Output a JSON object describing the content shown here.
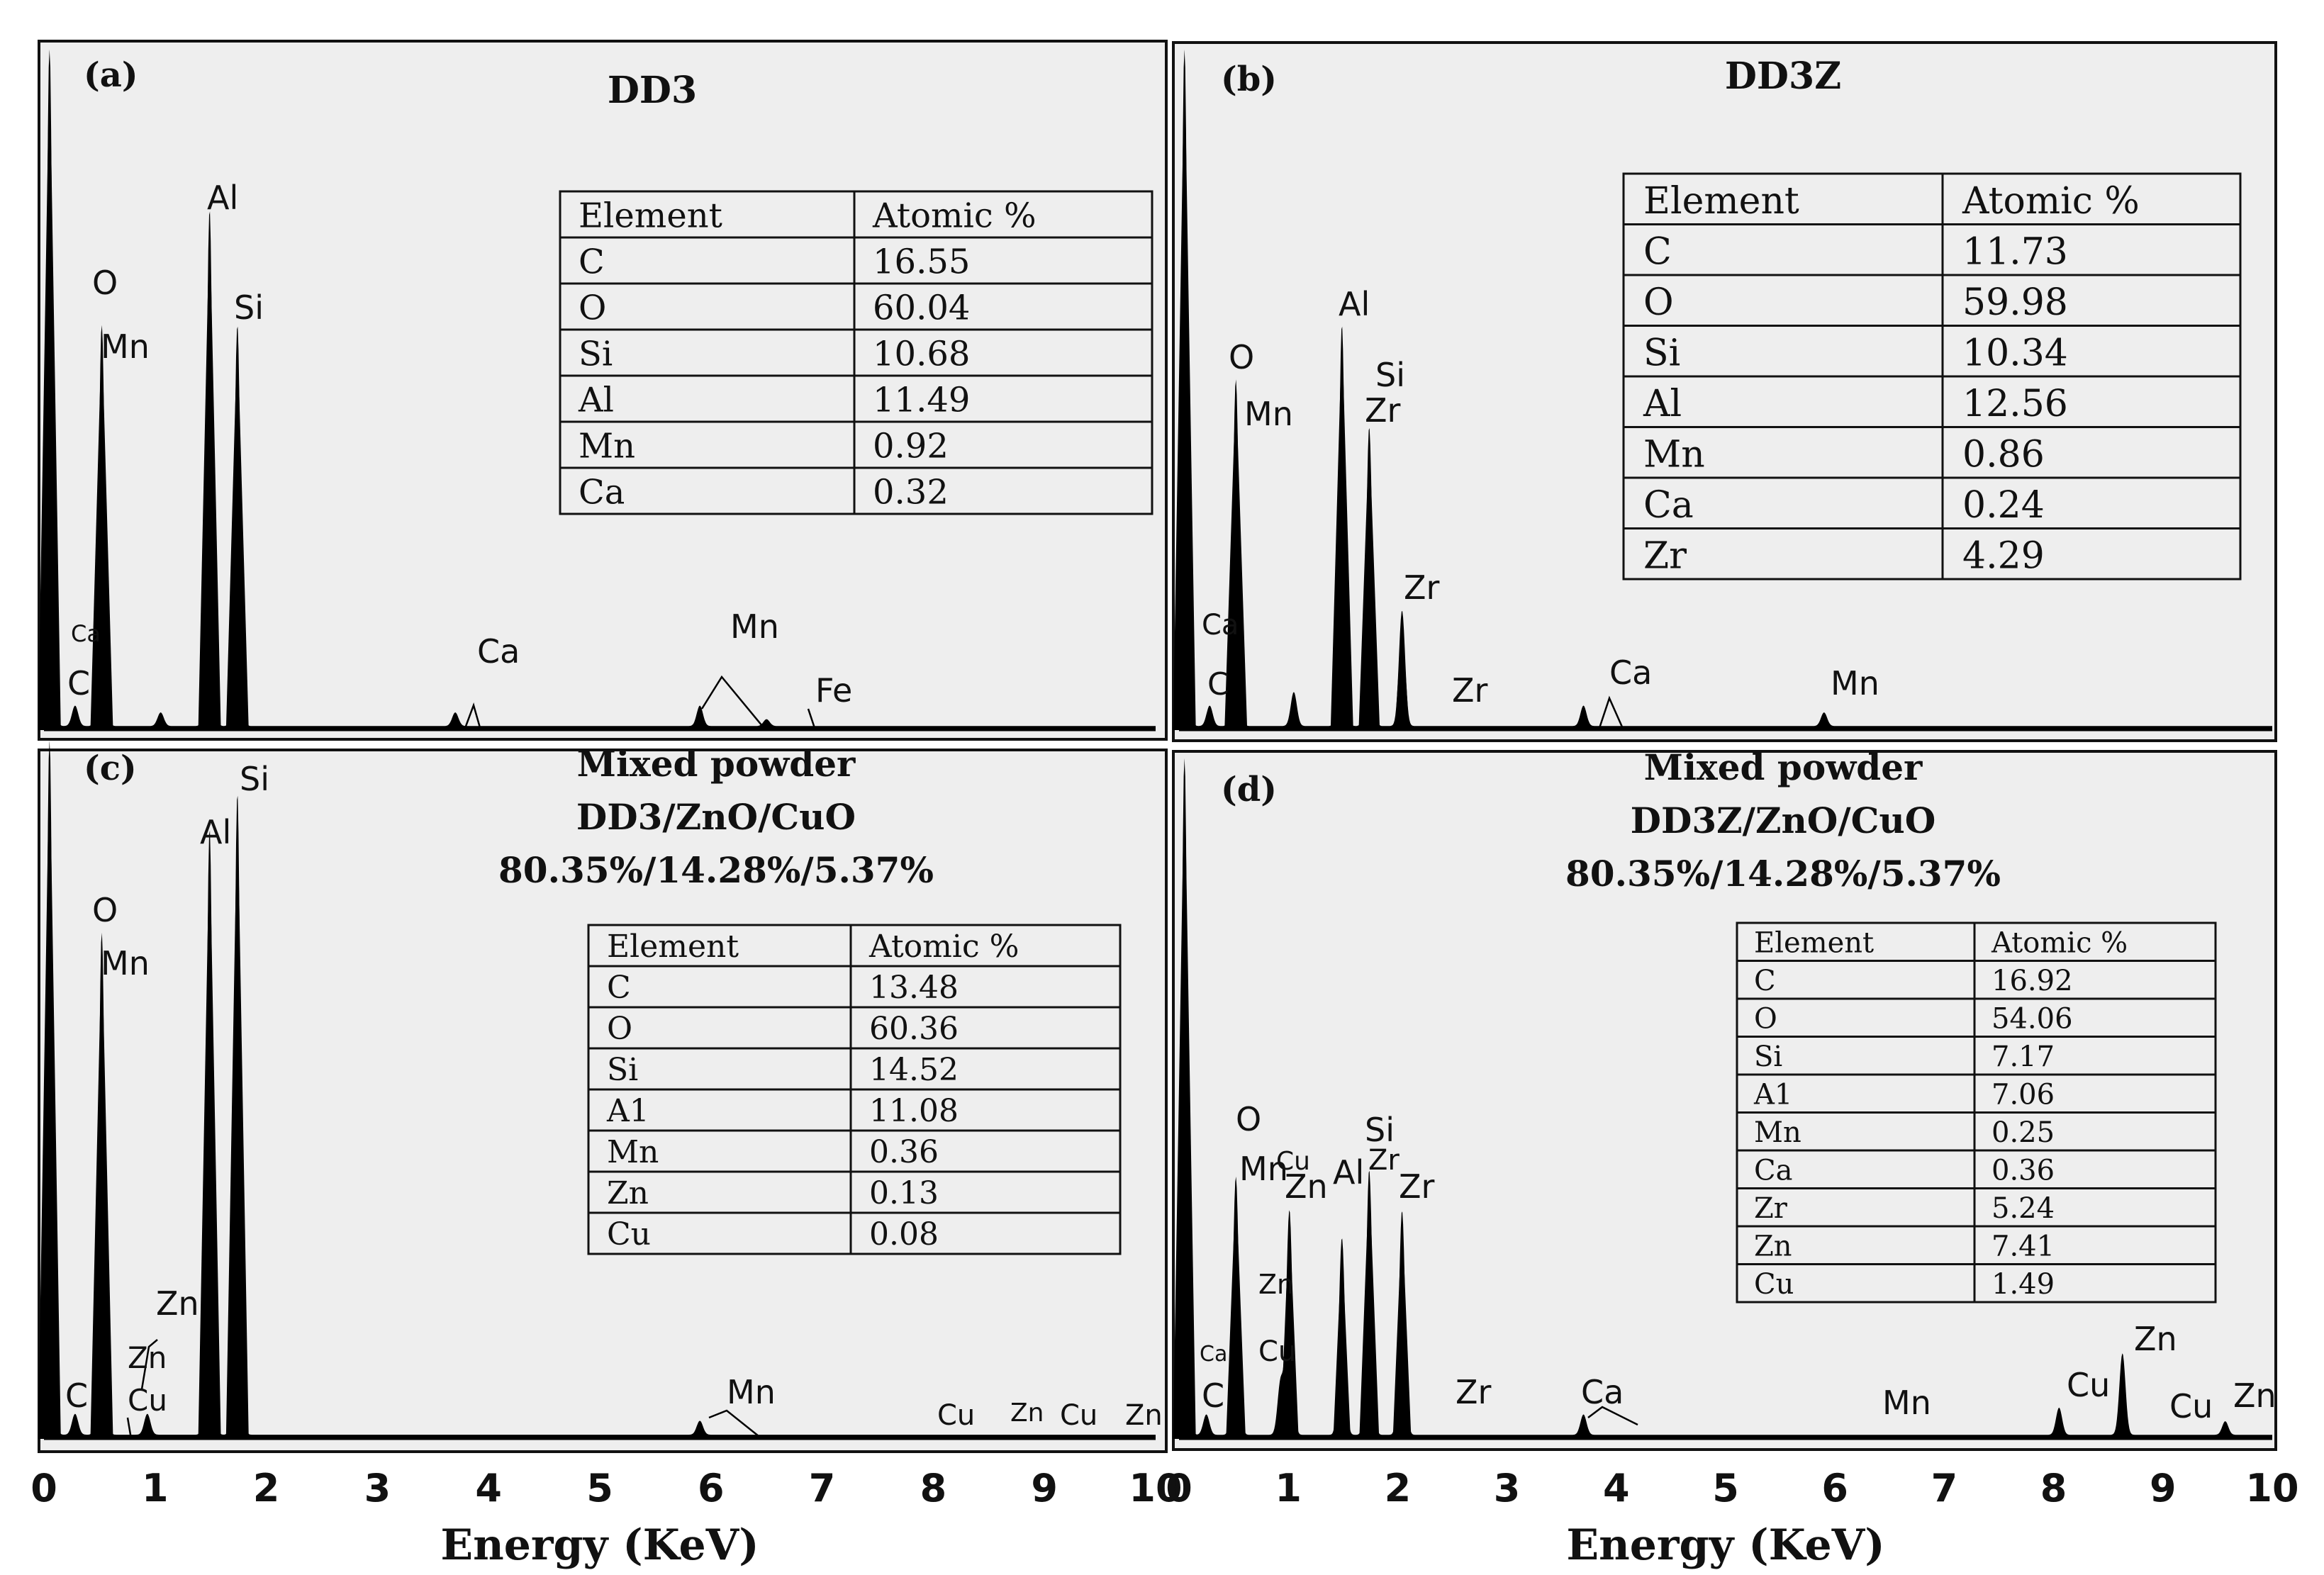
{
  "chart_data": [
    {
      "type": "eds-spectrum",
      "panel": "(a)",
      "title": "DD3",
      "subtitle_lines": [],
      "xlabel": "Energy (KeV)",
      "xlim": [
        0,
        10
      ],
      "x_ticks": [
        0,
        1,
        2,
        3,
        4,
        5,
        6,
        7,
        8,
        9,
        10
      ],
      "peaks": [
        {
          "energy": 0.05,
          "height": 1.0
        },
        {
          "energy": 0.28,
          "height": 0.03
        },
        {
          "energy": 0.52,
          "height": 0.59
        },
        {
          "energy": 1.05,
          "height": 0.02
        },
        {
          "energy": 1.49,
          "height": 0.76
        },
        {
          "energy": 1.74,
          "height": 0.59
        },
        {
          "energy": 3.7,
          "height": 0.02
        },
        {
          "energy": 5.9,
          "height": 0.03
        },
        {
          "energy": 6.5,
          "height": 0.01
        }
      ],
      "peak_labels": [
        {
          "text": "O",
          "energy": 0.52
        },
        {
          "text": "Mn",
          "energy": 0.55
        },
        {
          "text": "Al",
          "energy": 1.49
        },
        {
          "text": "Si",
          "energy": 1.74
        },
        {
          "text": "Ca",
          "energy": 0.29
        },
        {
          "text": "C",
          "energy": 0.27
        },
        {
          "text": "Ca",
          "energy": 3.9
        },
        {
          "text": "Mn",
          "energy": 6.1
        },
        {
          "text": "Fe",
          "energy": 7.0
        }
      ],
      "table": {
        "headers": [
          "Element",
          "Atomic %"
        ],
        "rows": [
          [
            "C",
            "16.55"
          ],
          [
            "O",
            "60.04"
          ],
          [
            "Si",
            "10.68"
          ],
          [
            "Al",
            "11.49"
          ],
          [
            "Mn",
            "0.92"
          ],
          [
            "Ca",
            "0.32"
          ]
        ]
      }
    },
    {
      "type": "eds-spectrum",
      "panel": "(b)",
      "title": "DD3Z",
      "subtitle_lines": [],
      "xlabel": "Energy (KeV)",
      "xlim": [
        0,
        10
      ],
      "x_ticks": [
        0,
        1,
        2,
        3,
        4,
        5,
        6,
        7,
        8,
        9,
        10
      ],
      "peaks": [
        {
          "energy": 0.05,
          "height": 1.0
        },
        {
          "energy": 0.28,
          "height": 0.03
        },
        {
          "energy": 0.52,
          "height": 0.51
        },
        {
          "energy": 1.05,
          "height": 0.05
        },
        {
          "energy": 1.49,
          "height": 0.59
        },
        {
          "energy": 1.74,
          "height": 0.44
        },
        {
          "energy": 2.04,
          "height": 0.17
        },
        {
          "energy": 3.7,
          "height": 0.03
        },
        {
          "energy": 5.9,
          "height": 0.02
        }
      ],
      "peak_labels": [
        {
          "text": "O",
          "energy": 0.45
        },
        {
          "text": "Mn",
          "energy": 0.55
        },
        {
          "text": "Al",
          "energy": 1.49
        },
        {
          "text": "Si",
          "energy": 1.78
        },
        {
          "text": "Zr",
          "energy": 1.74
        },
        {
          "text": "Zr",
          "energy": 2.04
        },
        {
          "text": "Ca",
          "energy": 0.18
        },
        {
          "text": "C",
          "energy": 0.25
        },
        {
          "text": "Zr",
          "energy": 2.4
        },
        {
          "text": "Ca",
          "energy": 3.9
        },
        {
          "text": "Mn",
          "energy": 5.9
        }
      ],
      "table": {
        "headers": [
          "Element",
          "Atomic %"
        ],
        "rows": [
          [
            "C",
            "11.73"
          ],
          [
            "O",
            "59.98"
          ],
          [
            "Si",
            "10.34"
          ],
          [
            "Al",
            "12.56"
          ],
          [
            "Mn",
            "0.86"
          ],
          [
            "Ca",
            "0.24"
          ],
          [
            "Zr",
            "4.29"
          ]
        ]
      }
    },
    {
      "type": "eds-spectrum",
      "panel": "(c)",
      "title": "Mixed powder",
      "subtitle_lines": [
        "DD3/ZnO/CuO",
        "80.35%/14.28%/5.37%"
      ],
      "xlabel": "Energy (KeV)",
      "xlim": [
        0,
        10
      ],
      "x_ticks": [
        0,
        1,
        2,
        3,
        4,
        5,
        6,
        7,
        8,
        9,
        10
      ],
      "peaks": [
        {
          "energy": 0.05,
          "height": 1.0
        },
        {
          "energy": 0.28,
          "height": 0.03
        },
        {
          "energy": 0.52,
          "height": 0.72
        },
        {
          "energy": 0.93,
          "height": 0.03
        },
        {
          "energy": 1.49,
          "height": 0.87
        },
        {
          "energy": 1.74,
          "height": 0.92
        },
        {
          "energy": 5.9,
          "height": 0.02
        }
      ],
      "peak_labels": [
        {
          "text": "O",
          "energy": 0.5
        },
        {
          "text": "Mn",
          "energy": 0.55
        },
        {
          "text": "Al",
          "energy": 1.45
        },
        {
          "text": "Si",
          "energy": 1.78
        },
        {
          "text": "Zn",
          "energy": 1.05
        },
        {
          "text": "Zn",
          "energy": 0.82
        },
        {
          "text": "C",
          "energy": 0.27
        },
        {
          "text": "Cu",
          "energy": 0.78
        },
        {
          "text": "Mn",
          "energy": 6.1
        },
        {
          "text": "Cu",
          "energy": 8.0
        },
        {
          "text": "Zn",
          "energy": 8.6
        },
        {
          "text": "Cu",
          "energy": 9.05
        },
        {
          "text": "Zn",
          "energy": 9.65
        }
      ],
      "table": {
        "headers": [
          "Element",
          "Atomic %"
        ],
        "rows": [
          [
            "C",
            "13.48"
          ],
          [
            "O",
            "60.36"
          ],
          [
            "Si",
            "14.52"
          ],
          [
            "A1",
            "11.08"
          ],
          [
            "Mn",
            "0.36"
          ],
          [
            "Zn",
            "0.13"
          ],
          [
            "Cu",
            "0.08"
          ]
        ]
      }
    },
    {
      "type": "eds-spectrum",
      "panel": "(d)",
      "title": "Mixed powder",
      "subtitle_lines": [
        "DD3Z/ZnO/CuO",
        "80.35%/14.28%/5.37%"
      ],
      "xlabel": "Energy (KeV)",
      "xlim": [
        0,
        10
      ],
      "x_ticks": [
        0,
        1,
        2,
        3,
        4,
        5,
        6,
        7,
        8,
        9,
        10
      ],
      "peaks": [
        {
          "energy": 0.05,
          "height": 1.0
        },
        {
          "energy": 0.25,
          "height": 0.03
        },
        {
          "energy": 0.52,
          "height": 0.38
        },
        {
          "energy": 0.93,
          "height": 0.08
        },
        {
          "energy": 1.01,
          "height": 0.33
        },
        {
          "energy": 1.49,
          "height": 0.29
        },
        {
          "energy": 1.74,
          "height": 0.39
        },
        {
          "energy": 2.04,
          "height": 0.33
        },
        {
          "energy": 3.7,
          "height": 0.03
        },
        {
          "energy": 8.05,
          "height": 0.04
        },
        {
          "energy": 8.63,
          "height": 0.12
        },
        {
          "energy": 9.57,
          "height": 0.02
        }
      ],
      "peak_labels": [
        {
          "text": "O",
          "energy": 0.5
        },
        {
          "text": "Mn",
          "energy": 0.45
        },
        {
          "text": "Cu",
          "energy": 0.95
        },
        {
          "text": "Zn",
          "energy": 1.02
        },
        {
          "text": "Al",
          "energy": 1.45
        },
        {
          "text": "Si",
          "energy": 1.76
        },
        {
          "text": "Zr",
          "energy": 1.74
        },
        {
          "text": "Zr",
          "energy": 2.05
        },
        {
          "text": "Zn",
          "energy": 0.78
        },
        {
          "text": "Ca",
          "energy": 0.25
        },
        {
          "text": "Cu",
          "energy": 0.75
        },
        {
          "text": "C",
          "energy": 0.25
        },
        {
          "text": "Zr",
          "energy": 2.5
        },
        {
          "text": "Ca",
          "energy": 3.7
        },
        {
          "text": "Mn",
          "energy": 5.9
        },
        {
          "text": "Cu",
          "energy": 8.0
        },
        {
          "text": "Zn",
          "energy": 8.6
        },
        {
          "text": "Cu",
          "energy": 9.0
        },
        {
          "text": "Zn",
          "energy": 9.55
        }
      ],
      "table": {
        "headers": [
          "Element",
          "Atomic %"
        ],
        "rows": [
          [
            "C",
            "16.92"
          ],
          [
            "O",
            "54.06"
          ],
          [
            "Si",
            "7.17"
          ],
          [
            "A1",
            "7.06"
          ],
          [
            "Mn",
            "0.25"
          ],
          [
            "Ca",
            "0.36"
          ],
          [
            "Zr",
            "5.24"
          ],
          [
            "Zn",
            "7.41"
          ],
          [
            "Cu",
            "1.49"
          ]
        ]
      }
    }
  ]
}
